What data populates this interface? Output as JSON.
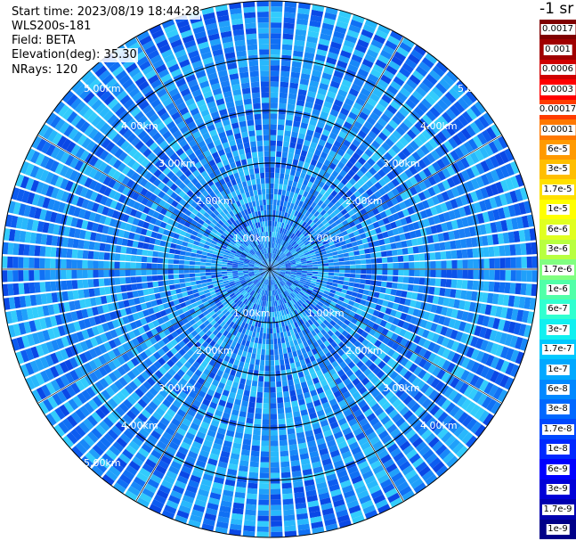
{
  "info": {
    "start_time": "Start time: 2023/08/19 18:44:28",
    "instrument": "WLS200s-181",
    "field": "Field: BETA",
    "elevation": "Elevation(deg): 35.30",
    "nrays": "NRays: 120"
  },
  "color_scale": {
    "unit": "-1 sr",
    "labels": [
      "0.0017",
      "0.001",
      "0.0006",
      "0.0003",
      "0.00017",
      "0.0001",
      "6e-5",
      "3e-5",
      "1.7e-5",
      "1e-5",
      "6e-6",
      "3e-6",
      "1.7e-6",
      "1e-6",
      "6e-7",
      "3e-7",
      "1.7e-7",
      "1e-7",
      "6e-8",
      "3e-8",
      "1.7e-8",
      "1e-8",
      "6e-9",
      "3e-9",
      "1.7e-9",
      "1e-9"
    ],
    "colors": [
      "#800000",
      "#a00000",
      "#d00000",
      "#ff0000",
      "#ff3c00",
      "#ff7800",
      "#ff9a00",
      "#ffbe00",
      "#ffe000",
      "#ffff00",
      "#e0ff20",
      "#b8ff40",
      "#80ff80",
      "#50ffa8",
      "#30ffd0",
      "#10f0f0",
      "#00c8ff",
      "#00a8ff",
      "#0088ff",
      "#0068ff",
      "#0048ff",
      "#0028ff",
      "#0000ff",
      "#0000d8",
      "#0000b0",
      "#000088"
    ]
  },
  "range_labels": {
    "r1": "1.00km",
    "r2": "2.00km",
    "r3": "3.00km",
    "r4": "4.00km",
    "r5": "5.00km"
  }
}
